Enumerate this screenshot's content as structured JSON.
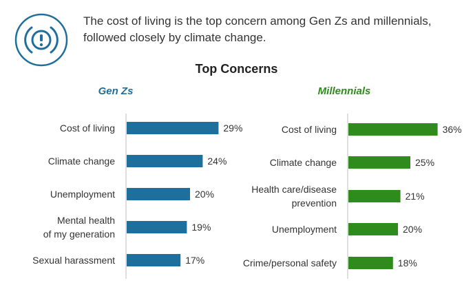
{
  "headline": "The cost of living is the top concern among Gen Zs and millennials, followed closely by climate change.",
  "icon": "alert-exclamation-icon",
  "colors": {
    "accent_blue": "#1f6f9c",
    "accent_green": "#2e8b1c",
    "text": "#333333"
  },
  "chart_data": [
    {
      "type": "bar",
      "orientation": "horizontal",
      "title": "Top Concerns",
      "subtitle": "Gen Zs",
      "color": "#1f6f9c",
      "categories": [
        "Cost of living",
        "Climate change",
        "Unemployment",
        "Mental health\nof my generation",
        "Sexual harassment"
      ],
      "values": [
        29,
        24,
        20,
        19,
        17
      ],
      "value_labels": [
        "29%",
        "24%",
        "20%",
        "19%",
        "17%"
      ],
      "unit": "%"
    },
    {
      "type": "bar",
      "orientation": "horizontal",
      "title": "Top Concerns",
      "subtitle": "Millennials",
      "color": "#2e8b1c",
      "categories": [
        "Cost of living",
        "Climate change",
        "Health care/disease\nprevention",
        "Unemployment",
        "Crime/personal safety"
      ],
      "values": [
        36,
        25,
        21,
        20,
        18
      ],
      "value_labels": [
        "36%",
        "25%",
        "21%",
        "20%",
        "18%"
      ],
      "unit": "%"
    }
  ]
}
